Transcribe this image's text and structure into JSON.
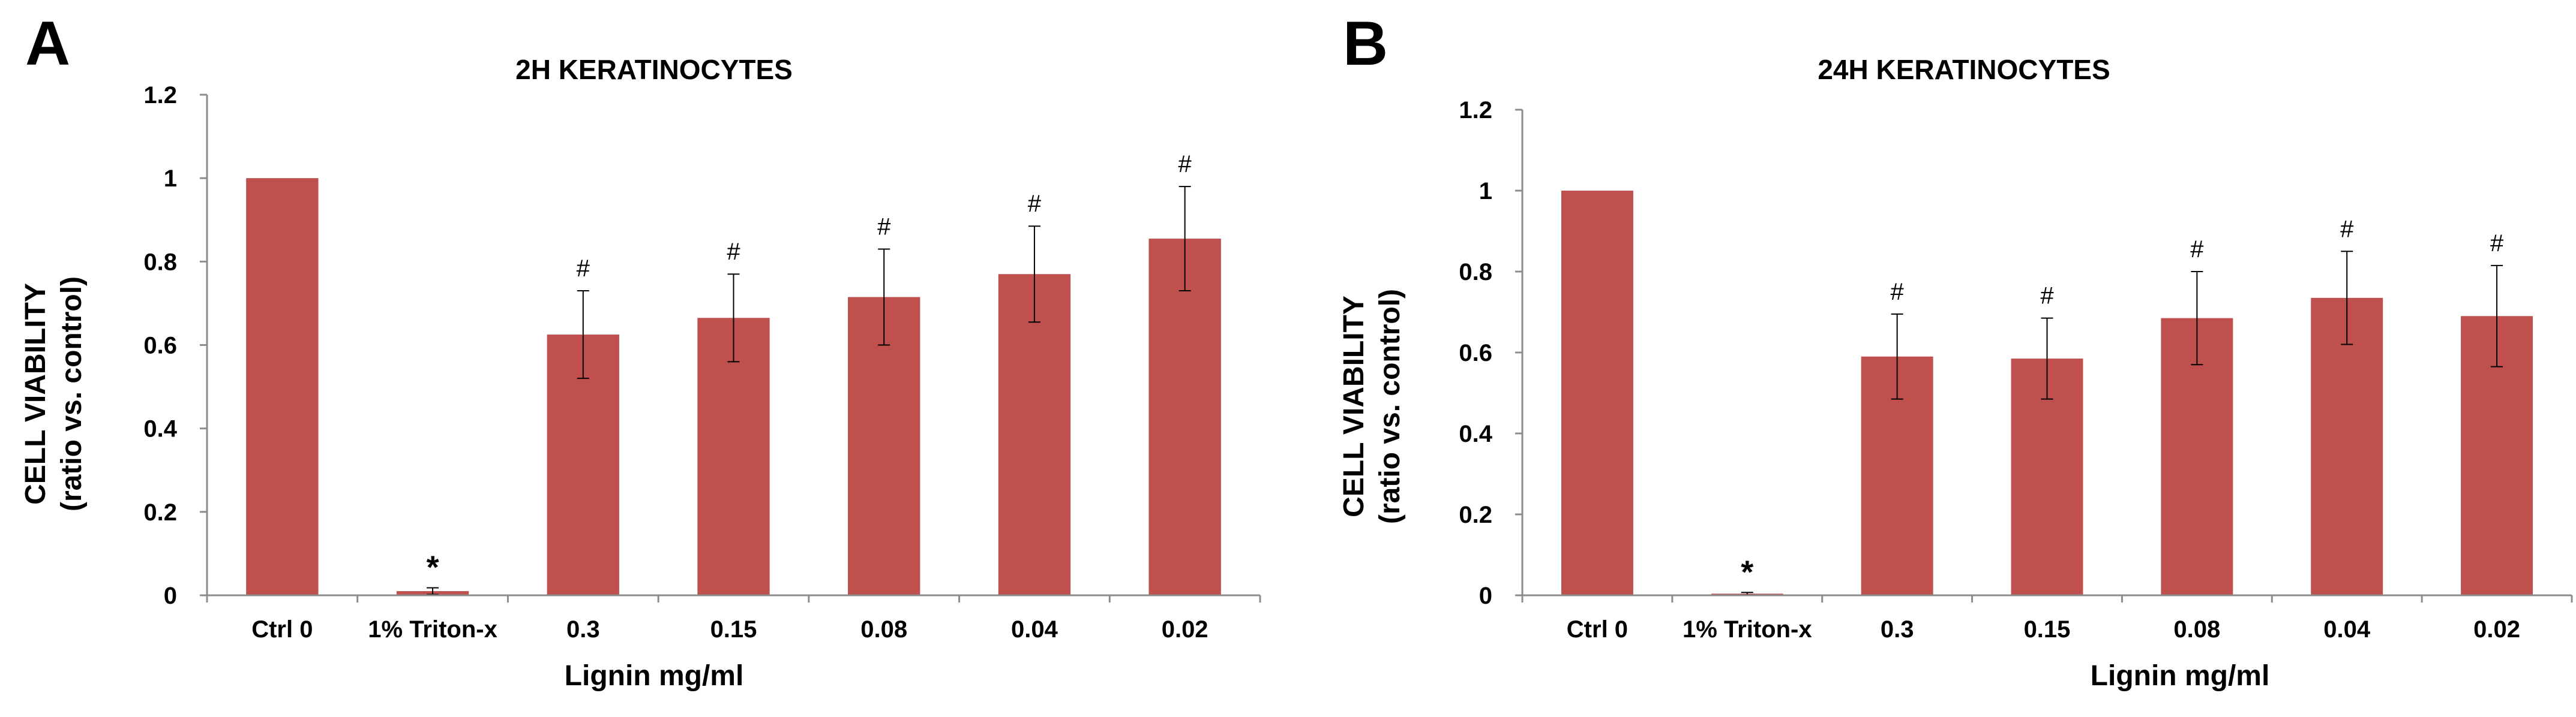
{
  "figure": {
    "bar_color": "#C0504D",
    "axis_color": "#8c8c8c",
    "error_color": "#000000"
  },
  "chart_data": [
    {
      "panel_label": "A",
      "type": "bar",
      "title": "2H KERATINOCYTES",
      "xlabel": "Lignin mg/ml",
      "ylabel": [
        "CELL VIABILITY",
        "(ratio vs. control)"
      ],
      "ylim": [
        0,
        1.2
      ],
      "yticks": [
        "0",
        "0.2",
        "0.4",
        "0.6",
        "0.8",
        "1",
        "1.2"
      ],
      "categories": [
        "Ctrl 0",
        "1% Triton-x",
        "0.3",
        "0.15",
        "0.08",
        "0.04",
        "0.02"
      ],
      "values": [
        1.0,
        0.01,
        0.625,
        0.665,
        0.715,
        0.77,
        0.855
      ],
      "errors": [
        0.0,
        0.008,
        0.105,
        0.105,
        0.115,
        0.115,
        0.125
      ],
      "markers": [
        "",
        "*",
        "#",
        "#",
        "#",
        "#",
        "#"
      ]
    },
    {
      "panel_label": "B",
      "type": "bar",
      "title": "24H KERATINOCYTES",
      "xlabel": "Lignin mg/ml",
      "ylabel": [
        "CELL VIABILITY",
        "(ratio vs. control)"
      ],
      "ylim": [
        0,
        1.2
      ],
      "yticks": [
        "0",
        "0.2",
        "0.4",
        "0.6",
        "0.8",
        "1",
        "1.2"
      ],
      "categories": [
        "Ctrl 0",
        "1% Triton-x",
        "0.3",
        "0.15",
        "0.08",
        "0.04",
        "0.02"
      ],
      "values": [
        1.0,
        0.004,
        0.59,
        0.585,
        0.685,
        0.735,
        0.69
      ],
      "errors": [
        0.0,
        0.003,
        0.105,
        0.1,
        0.115,
        0.115,
        0.125
      ],
      "markers": [
        "",
        "*",
        "#",
        "#",
        "#",
        "#",
        "#"
      ]
    }
  ]
}
